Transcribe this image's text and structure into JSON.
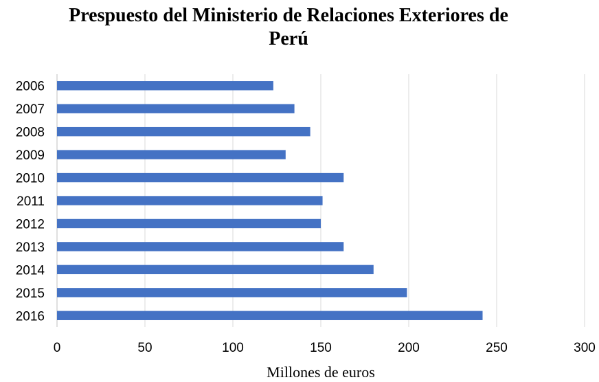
{
  "chart_data": {
    "type": "bar",
    "orientation": "horizontal",
    "title_lines": [
      "Prespuesto del Ministerio de Relaciones Exteriores de",
      "Perú"
    ],
    "xlabel": "Millones de euros",
    "ylabel": "",
    "categories": [
      "2006",
      "2007",
      "2008",
      "2009",
      "2010",
      "2011",
      "2012",
      "2013",
      "2014",
      "2015",
      "2016"
    ],
    "values": [
      123,
      135,
      144,
      130,
      163,
      151,
      150,
      163,
      180,
      199,
      242
    ],
    "xlim": [
      0,
      300
    ],
    "xticks": [
      "0",
      "50",
      "100",
      "150",
      "200",
      "250",
      "300"
    ],
    "grid": "vertical",
    "legend": "none",
    "bar_color": "#4472c4",
    "grid_color": "#d9d9d9"
  }
}
